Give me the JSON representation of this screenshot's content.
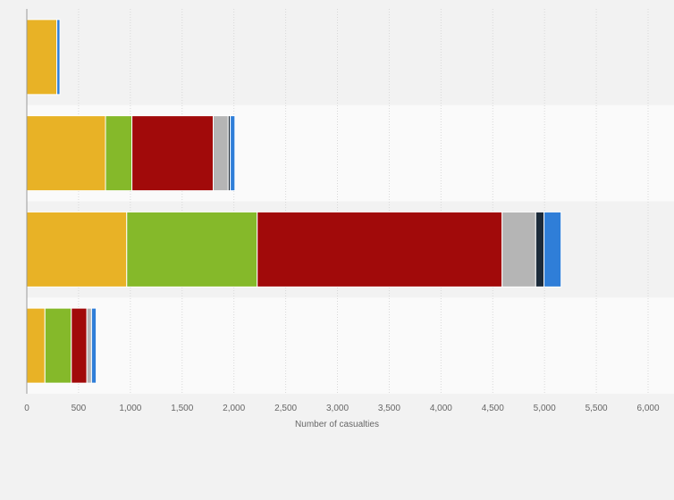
{
  "chart_data": {
    "type": "bar",
    "orientation": "horizontal",
    "stacked": true,
    "xlabel": "Number of casualties",
    "ylabel": "",
    "xlim": [
      0,
      6000
    ],
    "x_ticks": [
      0,
      500,
      1000,
      1500,
      2000,
      2500,
      3000,
      3500,
      4000,
      4500,
      5000,
      5500,
      6000
    ],
    "x_tick_labels": [
      "0",
      "500",
      "1,000",
      "1,500",
      "2,000",
      "2,500",
      "3,000",
      "3,500",
      "4,000",
      "4,500",
      "5,000",
      "5,500",
      "6,000"
    ],
    "grid": true,
    "legend": "none",
    "band_colors": [
      "#f2f2f2",
      "#fafafa"
    ],
    "series": [
      {
        "color": "#e8b226",
        "values": [
          290,
          760,
          965,
          175
        ]
      },
      {
        "color": "#85b92a",
        "values": [
          0,
          255,
          1260,
          255
        ]
      },
      {
        "color": "#a10a0a",
        "values": [
          0,
          785,
          2365,
          150
        ]
      },
      {
        "color": "#b5b5b5",
        "values": [
          0,
          145,
          325,
          45
        ]
      },
      {
        "color": "#1c2b3a",
        "values": [
          0,
          20,
          80,
          0
        ]
      },
      {
        "color": "#2f7ed8",
        "values": [
          30,
          45,
          165,
          45
        ]
      }
    ]
  }
}
